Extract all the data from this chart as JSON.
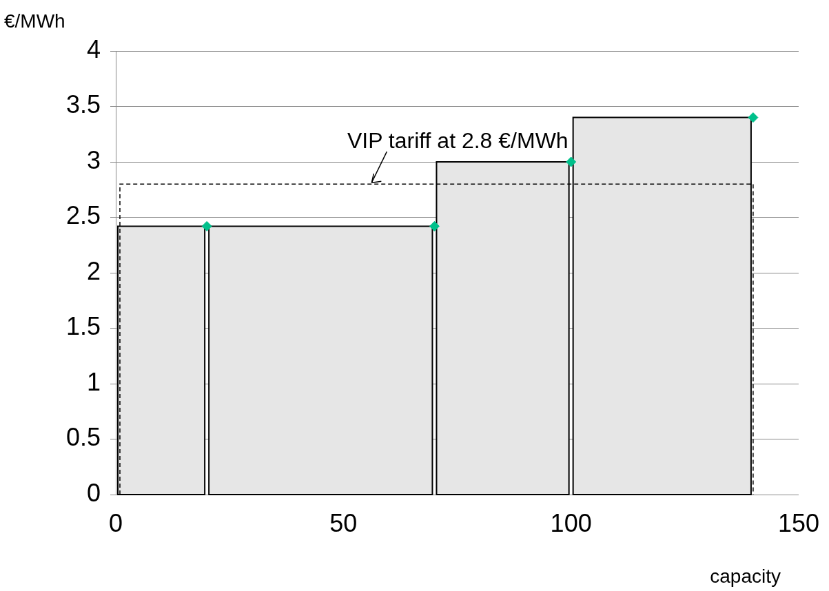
{
  "chart_data": {
    "type": "histogram",
    "xlabel": "capacity",
    "ylabel": "€/MWh",
    "bins": [
      0,
      20,
      70,
      100,
      140
    ],
    "series": [
      {
        "type": "histogram",
        "color": "#e6e6e6",
        "values": [
          2.42,
          2.42,
          3.0,
          3.4
        ]
      },
      {
        "type": "scatter",
        "color": "#00c08b",
        "x": [
          20,
          70,
          100,
          140
        ],
        "values": [
          2.42,
          2.42,
          3.0,
          3.4
        ]
      }
    ],
    "marker": "diamond",
    "ref_lines": [
      {
        "axis": "y",
        "value": 2.8,
        "label": "VIP tariff at 2.8 €/MWh",
        "line_style": "dashed"
      }
    ],
    "xlim": [
      0,
      150
    ],
    "xticks": [
      0,
      50,
      100,
      150
    ],
    "ylim": [
      0,
      4
    ],
    "yticks": [
      0,
      0.5,
      1,
      1.5,
      2,
      2.5,
      3,
      3.5,
      4
    ],
    "grid": "y",
    "legend": false
  }
}
